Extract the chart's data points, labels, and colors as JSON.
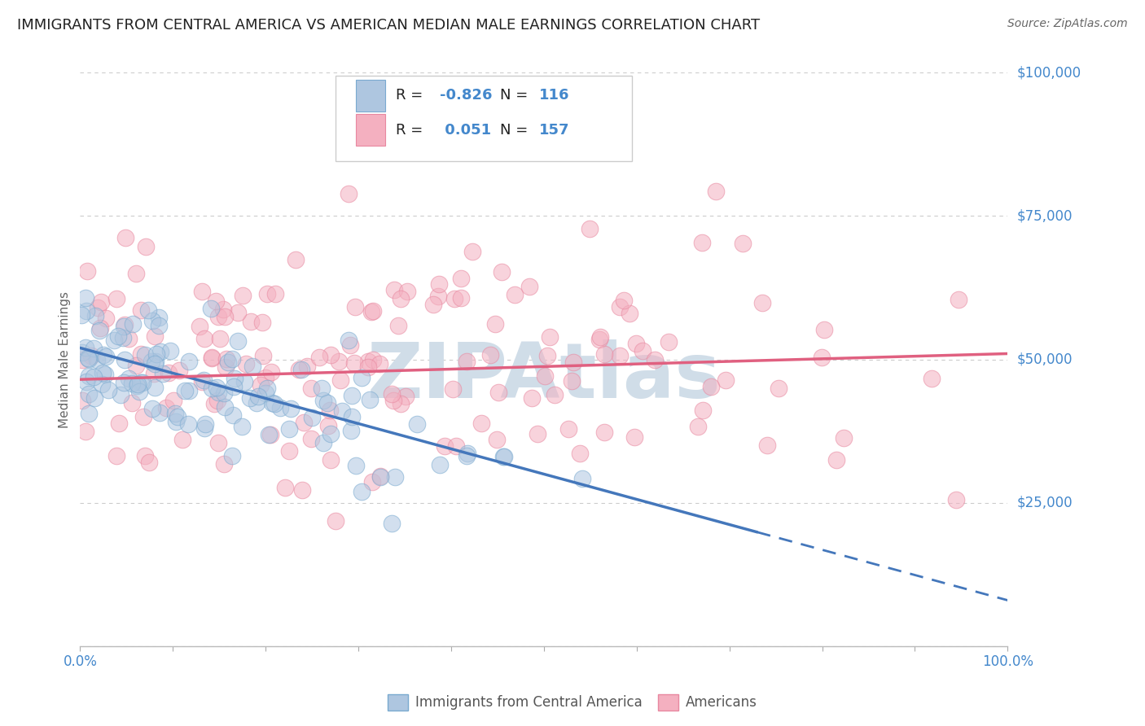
{
  "title": "IMMIGRANTS FROM CENTRAL AMERICA VS AMERICAN MEDIAN MALE EARNINGS CORRELATION CHART",
  "source": "Source: ZipAtlas.com",
  "ylabel": "Median Male Earnings",
  "yticks": [
    0,
    25000,
    50000,
    75000,
    100000
  ],
  "ytick_labels": [
    "",
    "$25,000",
    "$50,000",
    "$75,000",
    "$100,000"
  ],
  "legend_entries": [
    {
      "label": "Immigrants from Central America",
      "R": "-0.826",
      "N": "116"
    },
    {
      "label": "Americans",
      "R": "0.051",
      "N": "157"
    }
  ],
  "watermark": "ZIPAtlas",
  "watermark_color": "#d0dde8",
  "bg_color": "#ffffff",
  "grid_color": "#cccccc",
  "blue_dot_face": "#aec6e0",
  "blue_dot_edge": "#7aaad0",
  "pink_dot_face": "#f4b0c0",
  "pink_dot_edge": "#e888a0",
  "blue_line_color": "#4477bb",
  "pink_line_color": "#e06080",
  "title_color": "#222222",
  "axis_label_color": "#4488cc",
  "ylabel_color": "#666666",
  "source_color": "#666666",
  "legend_text_color": "#222222",
  "legend_value_color": "#4488cc",
  "legend_blue_face": "#aec6e0",
  "legend_blue_edge": "#7aaad0",
  "legend_pink_face": "#f4b0c0",
  "legend_pink_edge": "#e888a0"
}
